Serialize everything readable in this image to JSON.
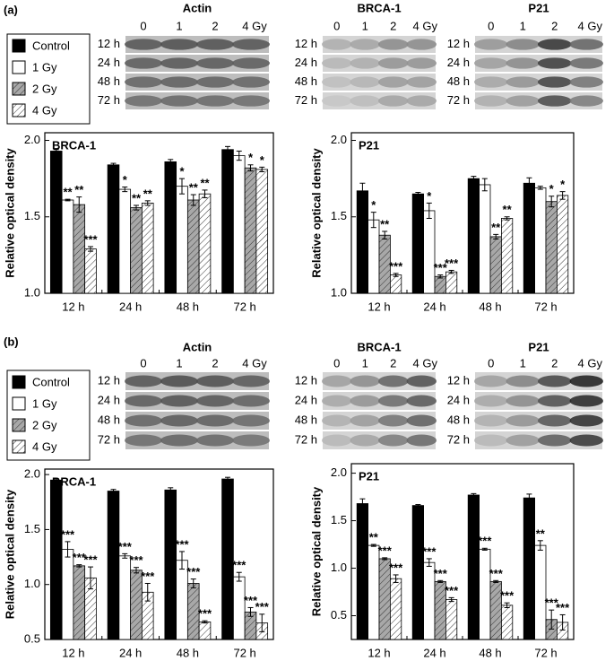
{
  "panels": [
    {
      "label": "(a)",
      "blots": [
        {
          "title": "Actin",
          "lanes": [
            "0",
            "1",
            "2",
            "4 Gy"
          ],
          "times": [
            "12 h",
            "24 h",
            "48 h",
            "72 h"
          ]
        },
        {
          "title": "BRCA-1",
          "lanes": [
            "0",
            "1",
            "2",
            "4 Gy"
          ],
          "times": [
            "12 h",
            "24 h",
            "48 h",
            "72 h"
          ]
        },
        {
          "title": "P21",
          "lanes": [
            "0",
            "1",
            "2",
            "4 Gy"
          ],
          "times": [
            "12 h",
            "24 h",
            "48 h",
            "72 h"
          ]
        }
      ]
    },
    {
      "label": "(b)",
      "blots": [
        {
          "title": "Actin",
          "lanes": [
            "0",
            "1",
            "2",
            "4 Gy"
          ],
          "times": [
            "12 h",
            "24 h",
            "48 h",
            "72 h"
          ]
        },
        {
          "title": "BRCA-1",
          "lanes": [
            "0",
            "1",
            "2",
            "4 Gy"
          ],
          "times": [
            "12 h",
            "24 h",
            "48 h",
            "72 h"
          ]
        },
        {
          "title": "P21",
          "lanes": [
            "0",
            "1",
            "2",
            "4 Gy"
          ],
          "times": [
            "12 h",
            "24 h",
            "48 h",
            "72 h"
          ]
        }
      ]
    }
  ],
  "chart_data": [
    {
      "type": "bar",
      "title": "BRCA-1",
      "ylabel": "Relative optical density",
      "categories": [
        "12 h",
        "24 h",
        "48 h",
        "72 h"
      ],
      "ylim": [
        1.0,
        2.05
      ],
      "yticks": [
        {
          "value": 1.0,
          "label": "1.0"
        },
        {
          "value": 1.5,
          "label": "1.5"
        },
        {
          "value": 2.0,
          "label": "2.0"
        }
      ],
      "series": [
        {
          "name": "Control",
          "color": "#000000",
          "hatch": false,
          "values": [
            1.93,
            1.84,
            1.86,
            1.94
          ],
          "errors": [
            0.01,
            0.01,
            0.015,
            0.02
          ],
          "annotations": [
            null,
            null,
            null,
            null
          ]
        },
        {
          "name": "1 Gy",
          "color": "#ffffff",
          "hatch": false,
          "values": [
            1.61,
            1.68,
            1.7,
            1.9
          ],
          "errors": [
            0.005,
            0.015,
            0.05,
            0.03
          ],
          "annotations": [
            "**",
            "*",
            "*",
            null
          ]
        },
        {
          "name": "2 Gy",
          "color": "#a8a8a8",
          "hatch": true,
          "values": [
            1.58,
            1.56,
            1.61,
            1.82
          ],
          "errors": [
            0.05,
            0.015,
            0.035,
            0.02
          ],
          "annotations": [
            "**",
            "**",
            "**",
            "*"
          ]
        },
        {
          "name": "4 Gy",
          "color": "#ffffff",
          "hatch": true,
          "values": [
            1.29,
            1.59,
            1.65,
            1.81
          ],
          "errors": [
            0.015,
            0.015,
            0.025,
            0.015
          ],
          "annotations": [
            "***",
            "**",
            "**",
            "*"
          ]
        }
      ]
    },
    {
      "type": "bar",
      "title": "P21",
      "ylabel": "Relative optical density",
      "categories": [
        "12 h",
        "24 h",
        "48 h",
        "72 h"
      ],
      "ylim": [
        1.0,
        2.05
      ],
      "yticks": [
        {
          "value": 1.0,
          "label": "1.0"
        },
        {
          "value": 1.5,
          "label": "1.5"
        },
        {
          "value": 2.0,
          "label": "2.0"
        }
      ],
      "series": [
        {
          "name": "Control",
          "color": "#000000",
          "hatch": false,
          "values": [
            1.67,
            1.65,
            1.75,
            1.72
          ],
          "errors": [
            0.05,
            0.01,
            0.015,
            0.035
          ],
          "annotations": [
            null,
            null,
            null,
            null
          ]
        },
        {
          "name": "1 Gy",
          "color": "#ffffff",
          "hatch": false,
          "values": [
            1.48,
            1.54,
            1.71,
            1.69
          ],
          "errors": [
            0.05,
            0.05,
            0.04,
            0.01
          ],
          "annotations": [
            "*",
            "*",
            null,
            null
          ]
        },
        {
          "name": "2 Gy",
          "color": "#a8a8a8",
          "hatch": true,
          "values": [
            1.38,
            1.11,
            1.37,
            1.6
          ],
          "errors": [
            0.025,
            0.01,
            0.015,
            0.035
          ],
          "annotations": [
            "**",
            "***",
            "**",
            "*"
          ]
        },
        {
          "name": "4 Gy",
          "color": "#ffffff",
          "hatch": true,
          "values": [
            1.12,
            1.14,
            1.49,
            1.64
          ],
          "errors": [
            0.01,
            0.01,
            0.01,
            0.025
          ],
          "annotations": [
            "***",
            "***",
            "**",
            "*"
          ]
        }
      ]
    },
    {
      "type": "bar",
      "title": "BRCA-1",
      "ylabel": "Relative optical density",
      "categories": [
        "12 h",
        "24 h",
        "48 h",
        "72 h"
      ],
      "ylim": [
        0.5,
        2.05
      ],
      "yticks": [
        {
          "value": 0.5,
          "label": "0.5"
        },
        {
          "value": 1.0,
          "label": "1.0"
        },
        {
          "value": 1.5,
          "label": "1.5"
        },
        {
          "value": 2.0,
          "label": "2.0"
        }
      ],
      "series": [
        {
          "name": "Control",
          "color": "#000000",
          "hatch": false,
          "values": [
            1.95,
            1.85,
            1.86,
            1.96
          ],
          "errors": [
            0.01,
            0.015,
            0.02,
            0.015
          ],
          "annotations": [
            null,
            null,
            null,
            null
          ]
        },
        {
          "name": "1 Gy",
          "color": "#ffffff",
          "hatch": false,
          "values": [
            1.32,
            1.26,
            1.22,
            1.07
          ],
          "errors": [
            0.07,
            0.02,
            0.08,
            0.04
          ],
          "annotations": [
            "***",
            "***",
            "***",
            "***"
          ]
        },
        {
          "name": "2 Gy",
          "color": "#a8a8a8",
          "hatch": true,
          "values": [
            1.17,
            1.13,
            1.01,
            0.75
          ],
          "errors": [
            0.01,
            0.025,
            0.04,
            0.04
          ],
          "annotations": [
            "***",
            "***",
            "***",
            "***"
          ]
        },
        {
          "name": "4 Gy",
          "color": "#ffffff",
          "hatch": true,
          "values": [
            1.06,
            0.93,
            0.66,
            0.65
          ],
          "errors": [
            0.1,
            0.08,
            0.01,
            0.08
          ],
          "annotations": [
            "***",
            "***",
            "***",
            "***"
          ]
        }
      ]
    },
    {
      "type": "bar",
      "title": "P21",
      "ylabel": "Relative optical density",
      "categories": [
        "12 h",
        "24 h",
        "48 h",
        "72 h"
      ],
      "ylim": [
        0.25,
        2.1
      ],
      "yticks": [
        {
          "value": 0.5,
          "label": "0.5"
        },
        {
          "value": 1.0,
          "label": "1.0"
        },
        {
          "value": 1.5,
          "label": "1.5"
        },
        {
          "value": 2.0,
          "label": "2.0"
        }
      ],
      "series": [
        {
          "name": "Control",
          "color": "#000000",
          "hatch": false,
          "values": [
            1.68,
            1.66,
            1.77,
            1.74
          ],
          "errors": [
            0.05,
            0.01,
            0.015,
            0.04
          ],
          "annotations": [
            null,
            null,
            null,
            null
          ]
        },
        {
          "name": "1 Gy",
          "color": "#ffffff",
          "hatch": false,
          "values": [
            1.24,
            1.06,
            1.2,
            1.24
          ],
          "errors": [
            0.01,
            0.04,
            0.01,
            0.05
          ],
          "annotations": [
            "**",
            "***",
            "***",
            "**"
          ]
        },
        {
          "name": "2 Gy",
          "color": "#a8a8a8",
          "hatch": true,
          "values": [
            1.1,
            0.86,
            0.86,
            0.46
          ],
          "errors": [
            0.01,
            0.01,
            0.01,
            0.1
          ],
          "annotations": [
            "***",
            "***",
            "***",
            "***"
          ]
        },
        {
          "name": "4 Gy",
          "color": "#ffffff",
          "hatch": true,
          "values": [
            0.89,
            0.67,
            0.61,
            0.43
          ],
          "errors": [
            0.04,
            0.02,
            0.025,
            0.08
          ],
          "annotations": [
            "***",
            "***",
            "***",
            "***"
          ]
        }
      ]
    }
  ]
}
